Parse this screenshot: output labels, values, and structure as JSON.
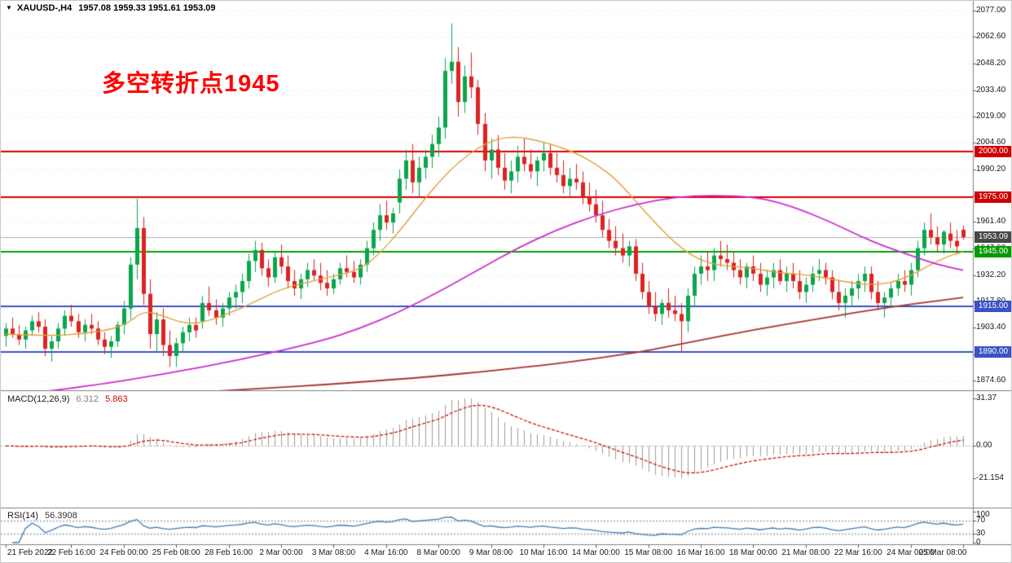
{
  "window": {
    "collapse_icon": "▼",
    "symbol_period": "XAUUSD-,H4",
    "ohlc_values": "1957.08 1959.33 1951.61 1953.09"
  },
  "annotation": {
    "text": "多空转折点1945",
    "color": "#ff0000"
  },
  "chart_data": {
    "type": "candlestick",
    "symbol": "XAUUSD-",
    "timeframe": "H4",
    "title": "XAUUSD H4 candlestick chart with support/resistance levels",
    "current_bar": {
      "open": 1957.08,
      "high": 1959.33,
      "low": 1951.61,
      "close": 1953.09
    },
    "colors": {
      "up": "#0aa64c",
      "down": "#dd2222",
      "ma_fast": "#e3a13e",
      "ma_mid": "#cc2fcf",
      "ma_slow": "#a83232",
      "grid": "#e4e4e4",
      "frame": "#808080"
    },
    "price_axis": {
      "top_price": 2077.0,
      "bottom_price": 1874.6,
      "ticks": [
        2077.0,
        2062.6,
        2048.2,
        2033.4,
        2019.0,
        2004.6,
        1990.2,
        1975.8,
        1961.4,
        1947.0,
        1932.2,
        1917.8,
        1903.4,
        1889.0,
        1874.6
      ]
    },
    "levels": [
      {
        "price": 2000.0,
        "label": "2000.00",
        "color": "#dd0000",
        "badge_bg": "#d00000"
      },
      {
        "price": 1975.0,
        "label": "1975.00",
        "color": "#dd0000",
        "badge_bg": "#d00000"
      },
      {
        "price": 1945.0,
        "label": "1945.00",
        "color": "#00a000",
        "badge_bg": "#009b00"
      },
      {
        "price": 1915.0,
        "label": "1915.00",
        "color": "#3a53c4",
        "badge_bg": "#3a53c4"
      },
      {
        "price": 1890.0,
        "label": "1890.00",
        "color": "#3a53c4",
        "badge_bg": "#3a53c4"
      }
    ],
    "current_price": {
      "value": 1953.09,
      "label": "1953.09",
      "badge_bg": "#474747",
      "line_color": "#b0b0b0"
    },
    "candles": [
      [
        1899,
        1906,
        1893,
        1903
      ],
      [
        1903,
        1909,
        1898,
        1900
      ],
      [
        1900,
        1905,
        1894,
        1897
      ],
      [
        1897,
        1904,
        1892,
        1902
      ],
      [
        1902,
        1910,
        1899,
        1907
      ],
      [
        1907,
        1912,
        1901,
        1904
      ],
      [
        1904,
        1908,
        1888,
        1892
      ],
      [
        1892,
        1899,
        1885,
        1896
      ],
      [
        1896,
        1906,
        1892,
        1903
      ],
      [
        1903,
        1913,
        1899,
        1910
      ],
      [
        1910,
        1916,
        1904,
        1907
      ],
      [
        1907,
        1911,
        1898,
        1901
      ],
      [
        1901,
        1908,
        1896,
        1905
      ],
      [
        1905,
        1911,
        1900,
        1903
      ],
      [
        1903,
        1907,
        1894,
        1897
      ],
      [
        1897,
        1901,
        1889,
        1893
      ],
      [
        1893,
        1899,
        1887,
        1896
      ],
      [
        1896,
        1907,
        1893,
        1905
      ],
      [
        1905,
        1918,
        1900,
        1914
      ],
      [
        1914,
        1942,
        1908,
        1938
      ],
      [
        1938,
        1974,
        1930,
        1958
      ],
      [
        1958,
        1964,
        1916,
        1922
      ],
      [
        1922,
        1930,
        1892,
        1900
      ],
      [
        1900,
        1912,
        1890,
        1908
      ],
      [
        1908,
        1914,
        1888,
        1894
      ],
      [
        1894,
        1902,
        1882,
        1888
      ],
      [
        1888,
        1898,
        1882,
        1895
      ],
      [
        1895,
        1904,
        1890,
        1901
      ],
      [
        1901,
        1909,
        1896,
        1905
      ],
      [
        1905,
        1909,
        1898,
        1902
      ],
      [
        1907,
        1921,
        1903,
        1917
      ],
      [
        1917,
        1926,
        1910,
        1913
      ],
      [
        1913,
        1919,
        1905,
        1909
      ],
      [
        1909,
        1917,
        1904,
        1914
      ],
      [
        1914,
        1923,
        1910,
        1920
      ],
      [
        1920,
        1927,
        1914,
        1923
      ],
      [
        1923,
        1933,
        1917,
        1929
      ],
      [
        1929,
        1944,
        1925,
        1940
      ],
      [
        1940,
        1951,
        1934,
        1946
      ],
      [
        1946,
        1950,
        1932,
        1936
      ],
      [
        1936,
        1941,
        1926,
        1931
      ],
      [
        1931,
        1945,
        1928,
        1942
      ],
      [
        1942,
        1949,
        1933,
        1937
      ],
      [
        1937,
        1943,
        1925,
        1929
      ],
      [
        1929,
        1935,
        1921,
        1925
      ],
      [
        1925,
        1933,
        1919,
        1930
      ],
      [
        1930,
        1939,
        1926,
        1935
      ],
      [
        1935,
        1941,
        1929,
        1932
      ],
      [
        1932,
        1939,
        1924,
        1928
      ],
      [
        1928,
        1935,
        1921,
        1925
      ],
      [
        1925,
        1933,
        1922,
        1930
      ],
      [
        1930,
        1939,
        1927,
        1936
      ],
      [
        1936,
        1943,
        1931,
        1934
      ],
      [
        1934,
        1940,
        1928,
        1931
      ],
      [
        1931,
        1941,
        1927,
        1938
      ],
      [
        1938,
        1951,
        1934,
        1947
      ],
      [
        1947,
        1961,
        1943,
        1957
      ],
      [
        1957,
        1971,
        1951,
        1965
      ],
      [
        1965,
        1973,
        1957,
        1961
      ],
      [
        1961,
        1969,
        1955,
        1966
      ],
      [
        1972,
        1990,
        1966,
        1985
      ],
      [
        1985,
        2001,
        1979,
        1995
      ],
      [
        1995,
        2004,
        1977,
        1983
      ],
      [
        1983,
        1997,
        1975,
        1991
      ],
      [
        1991,
        2001,
        1985,
        1997
      ],
      [
        1997,
        2009,
        1991,
        2004
      ],
      [
        2004,
        2019,
        1997,
        2013
      ],
      [
        2013,
        2051,
        2007,
        2044
      ],
      [
        2044,
        2070,
        2037,
        2049
      ],
      [
        2049,
        2057,
        2019,
        2027
      ],
      [
        2027,
        2047,
        2021,
        2041
      ],
      [
        2041,
        2054,
        2029,
        2035
      ],
      [
        2035,
        2039,
        2009,
        2015
      ],
      [
        2015,
        2021,
        1989,
        1995
      ],
      [
        1995,
        2007,
        1985,
        2001
      ],
      [
        2001,
        2009,
        1987,
        1991
      ],
      [
        1991,
        1999,
        1979,
        1984
      ],
      [
        1984,
        1995,
        1977,
        1989
      ],
      [
        1989,
        2003,
        1983,
        1997
      ],
      [
        1997,
        2007,
        1989,
        1993
      ],
      [
        1993,
        2001,
        1985,
        1989
      ],
      [
        1989,
        1997,
        1981,
        1995
      ],
      [
        1995,
        2005,
        1989,
        1999
      ],
      [
        1999,
        2004,
        1987,
        1991
      ],
      [
        1991,
        1999,
        1983,
        1987
      ],
      [
        1987,
        1995,
        1977,
        1981
      ],
      [
        1981,
        1991,
        1975,
        1985
      ],
      [
        1985,
        1993,
        1979,
        1983
      ],
      [
        1983,
        1989,
        1971,
        1975
      ],
      [
        1975,
        1983,
        1967,
        1971
      ],
      [
        1971,
        1979,
        1961,
        1965
      ],
      [
        1965,
        1973,
        1953,
        1957
      ],
      [
        1957,
        1963,
        1947,
        1951
      ],
      [
        1951,
        1959,
        1943,
        1947
      ],
      [
        1947,
        1955,
        1939,
        1943
      ],
      [
        1943,
        1951,
        1937,
        1948
      ],
      [
        1948,
        1952,
        1929,
        1933
      ],
      [
        1933,
        1939,
        1919,
        1923
      ],
      [
        1923,
        1929,
        1911,
        1915
      ],
      [
        1915,
        1923,
        1907,
        1911
      ],
      [
        1911,
        1919,
        1905,
        1917
      ],
      [
        1917,
        1925,
        1909,
        1913
      ],
      [
        1913,
        1921,
        1907,
        1911
      ],
      [
        1911,
        1917,
        1890,
        1907
      ],
      [
        1907,
        1925,
        1901,
        1921
      ],
      [
        1921,
        1937,
        1915,
        1933
      ],
      [
        1933,
        1943,
        1927,
        1937
      ],
      [
        1937,
        1945,
        1929,
        1935
      ],
      [
        1935,
        1947,
        1929,
        1943
      ],
      [
        1943,
        1951,
        1937,
        1941
      ],
      [
        1941,
        1949,
        1935,
        1939
      ],
      [
        1939,
        1945,
        1931,
        1935
      ],
      [
        1935,
        1941,
        1927,
        1931
      ],
      [
        1931,
        1939,
        1925,
        1937
      ],
      [
        1937,
        1943,
        1929,
        1933
      ],
      [
        1933,
        1939,
        1923,
        1927
      ],
      [
        1927,
        1935,
        1921,
        1931
      ],
      [
        1931,
        1939,
        1925,
        1935
      ],
      [
        1935,
        1941,
        1927,
        1929
      ],
      [
        1929,
        1937,
        1923,
        1933
      ],
      [
        1933,
        1939,
        1925,
        1929
      ],
      [
        1929,
        1935,
        1919,
        1923
      ],
      [
        1923,
        1931,
        1917,
        1927
      ],
      [
        1927,
        1937,
        1923,
        1933
      ],
      [
        1933,
        1941,
        1929,
        1935
      ],
      [
        1935,
        1939,
        1927,
        1931
      ],
      [
        1931,
        1935,
        1919,
        1923
      ],
      [
        1923,
        1929,
        1913,
        1917
      ],
      [
        1917,
        1925,
        1909,
        1921
      ],
      [
        1921,
        1929,
        1915,
        1925
      ],
      [
        1925,
        1933,
        1919,
        1929
      ],
      [
        1929,
        1937,
        1923,
        1933
      ],
      [
        1933,
        1937,
        1919,
        1923
      ],
      [
        1923,
        1929,
        1913,
        1917
      ],
      [
        1917,
        1923,
        1909,
        1920
      ],
      [
        1920,
        1928,
        1915,
        1925
      ],
      [
        1925,
        1933,
        1921,
        1929
      ],
      [
        1929,
        1935,
        1923,
        1927
      ],
      [
        1927,
        1939,
        1921,
        1935
      ],
      [
        1935,
        1951,
        1931,
        1947
      ],
      [
        1947,
        1961,
        1943,
        1957
      ],
      [
        1957,
        1966,
        1949,
        1953
      ],
      [
        1953,
        1959,
        1945,
        1949
      ],
      [
        1949,
        1957,
        1944,
        1956
      ],
      [
        1955,
        1961,
        1947,
        1951
      ],
      [
        1951,
        1957,
        1944,
        1948
      ],
      [
        1957.08,
        1959.33,
        1951.61,
        1953.09
      ]
    ],
    "moving_averages": [
      {
        "name": "ma-fast",
        "color": "#e3a13e",
        "width": 1.4,
        "points": [
          [
            0,
            1900
          ],
          [
            6,
            1899
          ],
          [
            12,
            1900
          ],
          [
            18,
            1904
          ],
          [
            21,
            1913
          ],
          [
            24,
            1910
          ],
          [
            27,
            1906
          ],
          [
            30,
            1906
          ],
          [
            36,
            1914
          ],
          [
            42,
            1925
          ],
          [
            48,
            1930
          ],
          [
            54,
            1935
          ],
          [
            57,
            1944
          ],
          [
            60,
            1956
          ],
          [
            63,
            1970
          ],
          [
            66,
            1983
          ],
          [
            69,
            1994
          ],
          [
            72,
            2002
          ],
          [
            75,
            2007
          ],
          [
            78,
            2008
          ],
          [
            81,
            2006
          ],
          [
            84,
            2003
          ],
          [
            87,
            1999
          ],
          [
            90,
            1993
          ],
          [
            93,
            1985
          ],
          [
            96,
            1973
          ],
          [
            99,
            1961
          ],
          [
            102,
            1950
          ],
          [
            105,
            1942
          ],
          [
            108,
            1938
          ],
          [
            111,
            1937
          ],
          [
            114,
            1936
          ],
          [
            117,
            1934
          ],
          [
            120,
            1933
          ],
          [
            123,
            1932
          ],
          [
            126,
            1930
          ],
          [
            129,
            1928
          ],
          [
            132,
            1927
          ],
          [
            135,
            1928
          ],
          [
            138,
            1932
          ],
          [
            141,
            1938
          ],
          [
            144,
            1943
          ],
          [
            146,
            1945
          ]
        ]
      },
      {
        "name": "ma-mid",
        "color": "#cc2fcf",
        "width": 1.8,
        "points": [
          [
            0,
            1866
          ],
          [
            12,
            1871
          ],
          [
            24,
            1878
          ],
          [
            36,
            1886
          ],
          [
            48,
            1896
          ],
          [
            54,
            1903
          ],
          [
            60,
            1912
          ],
          [
            66,
            1923
          ],
          [
            72,
            1935
          ],
          [
            78,
            1947
          ],
          [
            84,
            1957
          ],
          [
            90,
            1965
          ],
          [
            96,
            1971
          ],
          [
            102,
            1975
          ],
          [
            108,
            1976
          ],
          [
            114,
            1975
          ],
          [
            118,
            1972
          ],
          [
            122,
            1967
          ],
          [
            126,
            1961
          ],
          [
            130,
            1954
          ],
          [
            134,
            1948
          ],
          [
            138,
            1943
          ],
          [
            142,
            1938
          ],
          [
            146,
            1935
          ]
        ]
      },
      {
        "name": "ma-slow",
        "color": "#a83232",
        "width": 1.8,
        "points": [
          [
            0,
            1862
          ],
          [
            30,
            1868
          ],
          [
            60,
            1875
          ],
          [
            80,
            1882
          ],
          [
            95,
            1889
          ],
          [
            105,
            1896
          ],
          [
            115,
            1903
          ],
          [
            125,
            1909
          ],
          [
            135,
            1915
          ],
          [
            146,
            1920
          ]
        ]
      }
    ],
    "time_axis": {
      "labels": [
        [
          0,
          "21 Feb 2022"
        ],
        [
          10,
          "22 Feb 16:00"
        ],
        [
          18,
          "24 Feb 00:00"
        ],
        [
          26,
          "25 Feb 08:00"
        ],
        [
          34,
          "28 Feb 16:00"
        ],
        [
          42,
          "2 Mar 00:00"
        ],
        [
          50,
          "3 Mar 08:00"
        ],
        [
          58,
          "4 Mar 16:00"
        ],
        [
          66,
          "8 Mar 00:00"
        ],
        [
          74,
          "9 Mar 08:00"
        ],
        [
          82,
          "10 Mar 16:00"
        ],
        [
          90,
          "14 Mar 00:00"
        ],
        [
          98,
          "15 Mar 08:00"
        ],
        [
          106,
          "16 Mar 16:00"
        ],
        [
          114,
          "18 Mar 00:00"
        ],
        [
          122,
          "21 Mar 08:00"
        ],
        [
          130,
          "22 Mar 16:00"
        ],
        [
          138,
          "24 Mar 00:00"
        ],
        [
          146,
          "25 Mar 08:00"
        ]
      ]
    },
    "macd": {
      "label": "MACD(12,26,9)",
      "main_value": "6.312",
      "signal_value": "5.863",
      "params": [
        12,
        26,
        9
      ],
      "axis": [
        [
          31.37,
          "31.37"
        ],
        [
          0,
          "0.00"
        ],
        [
          -21.154,
          "-21.154"
        ]
      ],
      "histogram_color": "#9e9e9e",
      "signal_color": "#cc0000"
    },
    "rsi": {
      "label": "RSI(14)",
      "value": "56.3908",
      "period": 14,
      "axis": [
        [
          100,
          "100"
        ],
        [
          70,
          "70"
        ],
        [
          30,
          "30"
        ],
        [
          0,
          "0"
        ]
      ],
      "level_lines": [
        70,
        30
      ],
      "line_color": "#417bb5"
    }
  }
}
